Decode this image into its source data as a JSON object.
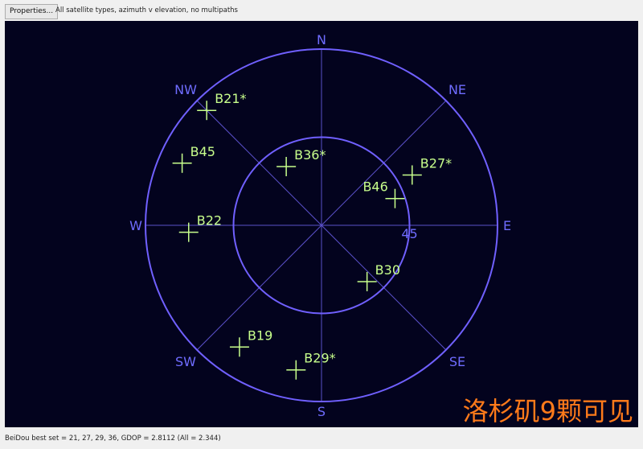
{
  "toolbar": {
    "properties_label": "Properties...",
    "description": "All satellite types, azimuth v elevation, no multipaths"
  },
  "plot": {
    "colors": {
      "background": "#03031e",
      "rings": "#7060ff",
      "spokes": "#5a50c8",
      "labels": "#6f6cff",
      "satellite": "#c8ff8c",
      "overlay": "#ff7a1a"
    },
    "directions": [
      "N",
      "NE",
      "E",
      "SE",
      "S",
      "SW",
      "W",
      "NW"
    ],
    "ring_label": "45",
    "satellites": [
      {
        "name": "B21*",
        "azimuth": 315,
        "elevation": 7
      },
      {
        "name": "B45",
        "azimuth": 294,
        "elevation": 12
      },
      {
        "name": "B36*",
        "azimuth": 329,
        "elevation": 55
      },
      {
        "name": "B27*",
        "azimuth": 61,
        "elevation": 37
      },
      {
        "name": "B46",
        "azimuth": 70,
        "elevation": 50
      },
      {
        "name": "B22",
        "azimuth": 267,
        "elevation": 22
      },
      {
        "name": "B30",
        "azimuth": 141,
        "elevation": 53
      },
      {
        "name": "B19",
        "azimuth": 214,
        "elevation": 15
      },
      {
        "name": "B29*",
        "azimuth": 190,
        "elevation": 15
      }
    ],
    "overlay_text": "洛杉矶9颗可见"
  },
  "status": {
    "text": "BeiDou best set = 21, 27, 29, 36, GDOP = 2.8112 (All = 2.344)"
  }
}
